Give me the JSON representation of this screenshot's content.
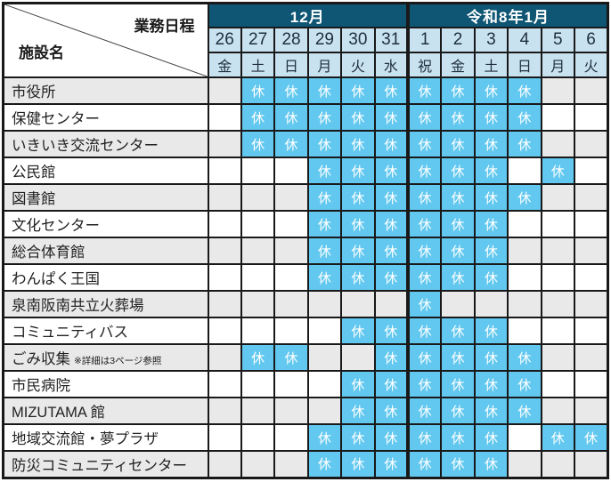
{
  "table": {
    "corner": {
      "top": "業務日程",
      "bottom": "施設名"
    },
    "month_groups": [
      {
        "label": "12月",
        "span": 6
      },
      {
        "label": "令和8年1月",
        "span": 6
      }
    ],
    "dates": [
      "26",
      "27",
      "28",
      "29",
      "30",
      "31",
      "1",
      "2",
      "3",
      "4",
      "5",
      "6"
    ],
    "days": [
      "金",
      "土",
      "日",
      "月",
      "火",
      "水",
      "祝",
      "金",
      "土",
      "日",
      "月",
      "火"
    ],
    "closed_mark": "休",
    "rows": [
      {
        "name": "市役所",
        "closed": [
          0,
          1,
          1,
          1,
          1,
          1,
          1,
          1,
          1,
          1,
          0,
          0
        ]
      },
      {
        "name": "保健センター",
        "closed": [
          0,
          1,
          1,
          1,
          1,
          1,
          1,
          1,
          1,
          1,
          0,
          0
        ]
      },
      {
        "name": "いきいき交流センター",
        "closed": [
          0,
          1,
          1,
          1,
          1,
          1,
          1,
          1,
          1,
          1,
          0,
          0
        ]
      },
      {
        "name": "公民館",
        "closed": [
          0,
          0,
          0,
          1,
          1,
          1,
          1,
          1,
          1,
          0,
          1,
          0
        ]
      },
      {
        "name": "図書館",
        "closed": [
          0,
          0,
          0,
          1,
          1,
          1,
          1,
          1,
          1,
          1,
          0,
          0
        ]
      },
      {
        "name": "文化センター",
        "closed": [
          0,
          0,
          0,
          1,
          1,
          1,
          1,
          1,
          1,
          0,
          0,
          0
        ]
      },
      {
        "name": "総合体育館",
        "closed": [
          0,
          0,
          0,
          1,
          1,
          1,
          1,
          1,
          1,
          0,
          0,
          0
        ]
      },
      {
        "name": "わんぱく王国",
        "closed": [
          0,
          0,
          0,
          1,
          1,
          1,
          1,
          1,
          1,
          0,
          0,
          0
        ]
      },
      {
        "name": "泉南阪南共立火葬場",
        "closed": [
          0,
          0,
          0,
          0,
          0,
          0,
          1,
          0,
          0,
          0,
          0,
          0
        ]
      },
      {
        "name": "コミュニティバス",
        "closed": [
          0,
          0,
          0,
          0,
          1,
          1,
          1,
          1,
          1,
          0,
          0,
          0
        ]
      },
      {
        "name": "ごみ収集",
        "note": "※詳細は3ページ参照",
        "closed": [
          0,
          1,
          1,
          0,
          0,
          1,
          1,
          1,
          1,
          1,
          0,
          0
        ]
      },
      {
        "name": "市民病院",
        "closed": [
          0,
          0,
          0,
          0,
          1,
          1,
          1,
          1,
          1,
          1,
          0,
          0
        ]
      },
      {
        "name": "MIZUTAMA 館",
        "closed": [
          0,
          0,
          0,
          0,
          1,
          1,
          1,
          1,
          1,
          1,
          0,
          0
        ]
      },
      {
        "name": "地域交流館・夢プラザ",
        "closed": [
          0,
          0,
          0,
          1,
          1,
          1,
          1,
          1,
          1,
          0,
          1,
          1
        ]
      },
      {
        "name": "防災コミュニティセンター",
        "closed": [
          0,
          0,
          0,
          1,
          1,
          1,
          1,
          1,
          1,
          0,
          0,
          0
        ]
      }
    ]
  },
  "colors": {
    "month_header_bg": "#0f5674",
    "month_header_text": "#ffffff",
    "date_header_bg": "#c9e2f0",
    "closed_bg": "#62c8ef",
    "closed_text": "#ffffff",
    "row_alt_bg": "#e9e9e9",
    "border": "#191919",
    "header_text": "#1e2e3d"
  }
}
